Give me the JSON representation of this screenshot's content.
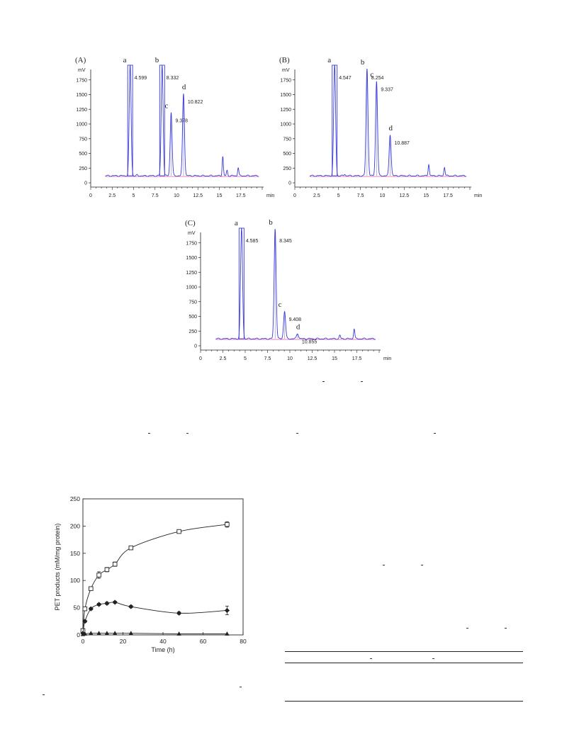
{
  "chart_data": [
    {
      "type": "line",
      "panel": "(A)",
      "yunit": "mV",
      "xunit": "min",
      "xlim": [
        0,
        20
      ],
      "ylim": [
        0,
        2000
      ],
      "xticks": [
        "0",
        "2.5",
        "5",
        "7.5",
        "10",
        "12.5",
        "15",
        "17.5"
      ],
      "yticks": [
        "0",
        "250",
        "500",
        "750",
        "1000",
        "1250",
        "1500",
        "1750"
      ],
      "peaks": [
        {
          "letter": "a",
          "rt": "4.599",
          "x": 4.6,
          "height": 2000,
          "clipped": true
        },
        {
          "letter": "b",
          "rt": "8.332",
          "x": 8.33,
          "height": 2000,
          "clipped": true
        },
        {
          "letter": "c",
          "rt": "9.378",
          "x": 9.38,
          "height": 1200,
          "clipped": false
        },
        {
          "letter": "d",
          "rt": "10.822",
          "x": 10.82,
          "height": 1520,
          "clipped": false
        }
      ],
      "minor_peaks": [
        [
          5.4,
          130
        ],
        [
          6.3,
          115
        ],
        [
          15.4,
          450
        ],
        [
          15.9,
          210
        ],
        [
          17.2,
          260
        ]
      ],
      "baseline": 120
    },
    {
      "type": "line",
      "panel": "(B)",
      "yunit": "mV",
      "xunit": "min",
      "xlim": [
        0,
        20
      ],
      "ylim": [
        0,
        2000
      ],
      "xticks": [
        "0",
        "2.5",
        "5",
        "7.5",
        "10",
        "12.5",
        "15",
        "17.5"
      ],
      "yticks": [
        "0",
        "250",
        "500",
        "750",
        "1000",
        "1250",
        "1500",
        "1750"
      ],
      "peaks": [
        {
          "letter": "a",
          "rt": "4.547",
          "x": 4.55,
          "height": 2000,
          "clipped": true
        },
        {
          "letter": "b",
          "rt": "8.254",
          "x": 8.25,
          "height": 1940,
          "clipped": false
        },
        {
          "letter": "c",
          "rt": "9.337",
          "x": 9.34,
          "height": 1730,
          "clipped": false
        },
        {
          "letter": "d",
          "rt": "10.887",
          "x": 10.89,
          "height": 820,
          "clipped": false
        }
      ],
      "minor_peaks": [
        [
          5.7,
          150
        ],
        [
          15.3,
          320
        ],
        [
          17.1,
          270
        ]
      ],
      "baseline": 120
    },
    {
      "type": "line",
      "panel": "(C)",
      "yunit": "mV",
      "xunit": "min",
      "xlim": [
        0,
        20
      ],
      "ylim": [
        0,
        2000
      ],
      "xticks": [
        "0",
        "2.5",
        "5",
        "7.5",
        "10",
        "12.5",
        "15",
        "17.5"
      ],
      "yticks": [
        "0",
        "250",
        "500",
        "750",
        "1000",
        "1250",
        "1500",
        "1750"
      ],
      "peaks": [
        {
          "letter": "a",
          "rt": "4.585",
          "x": 4.59,
          "height": 2000,
          "clipped": true
        },
        {
          "letter": "b",
          "rt": "8.345",
          "x": 8.35,
          "height": 1990,
          "clipped": false
        },
        {
          "letter": "c",
          "rt": "9.408",
          "x": 9.41,
          "height": 590,
          "clipped": false
        },
        {
          "letter": "d",
          "rt": "10.855",
          "x": 10.86,
          "height": 210,
          "clipped": false
        }
      ],
      "minor_peaks": [
        [
          15.6,
          180
        ],
        [
          17.2,
          290
        ]
      ],
      "baseline": 120
    },
    {
      "type": "line",
      "xlabel": "Time (h)",
      "ylabel": "PET products (mM/mg protein)",
      "xlim": [
        0,
        80
      ],
      "ylim": [
        0,
        250
      ],
      "xticks": [
        0,
        20,
        40,
        60,
        80
      ],
      "yticks": [
        0,
        50,
        100,
        150,
        200,
        250
      ],
      "series": [
        {
          "marker": "open-square",
          "x": [
            0,
            1,
            4,
            8,
            12,
            16,
            24,
            48,
            72
          ],
          "y": [
            8,
            48,
            85,
            110,
            120,
            130,
            160,
            190,
            203
          ],
          "err": [
            0,
            0,
            3,
            6,
            4,
            4,
            2,
            2,
            5
          ]
        },
        {
          "marker": "filled-diamond",
          "x": [
            0,
            1,
            4,
            8,
            12,
            16,
            24,
            48,
            72
          ],
          "y": [
            3,
            25,
            48,
            56,
            58,
            60,
            52,
            40,
            45
          ],
          "err": [
            0,
            2,
            2,
            2,
            2,
            2,
            2,
            2,
            8
          ]
        },
        {
          "marker": "filled-triangle",
          "x": [
            0,
            1,
            4,
            8,
            12,
            16,
            24,
            48,
            72
          ],
          "y": [
            1,
            2,
            3,
            3,
            3,
            3,
            3,
            2,
            2
          ],
          "err": [
            0,
            0,
            0,
            0,
            0,
            0,
            0,
            0,
            0
          ]
        }
      ]
    }
  ],
  "colors": {
    "trace": "#3a3ad8",
    "baseline": "#e06fae",
    "ink": "#222222"
  }
}
